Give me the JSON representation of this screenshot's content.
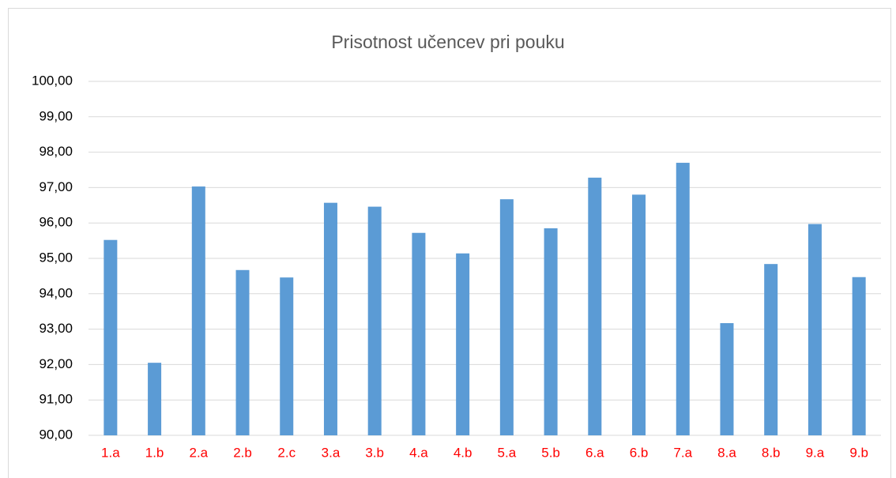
{
  "chart_data": {
    "type": "bar",
    "title": "Prisotnost učencev pri pouku",
    "categories": [
      "1.a",
      "1.b",
      "2.a",
      "2.b",
      "2.c",
      "3.a",
      "3.b",
      "4.a",
      "4.b",
      "5.a",
      "5.b",
      "6.a",
      "6.b",
      "7.a",
      "8.a",
      "8.b",
      "9.a",
      "9.b"
    ],
    "values": [
      95.52,
      92.05,
      97.03,
      94.67,
      94.46,
      96.57,
      96.46,
      95.72,
      95.14,
      96.67,
      95.85,
      97.28,
      96.8,
      97.7,
      93.17,
      94.84,
      95.97,
      94.47
    ],
    "color": "#5b9bd5",
    "category_color": "#ff0000",
    "ylim": [
      90,
      100
    ],
    "yticks": [
      {
        "value": 90,
        "label": "90,00"
      },
      {
        "value": 91,
        "label": "91,00"
      },
      {
        "value": 92,
        "label": "92,00"
      },
      {
        "value": 93,
        "label": "93,00"
      },
      {
        "value": 94,
        "label": "94,00"
      },
      {
        "value": 95,
        "label": "95,00"
      },
      {
        "value": 96,
        "label": "96,00"
      },
      {
        "value": 97,
        "label": "97,00"
      },
      {
        "value": 98,
        "label": "98,00"
      },
      {
        "value": 99,
        "label": "99,00"
      },
      {
        "value": 100,
        "label": "100,00"
      }
    ],
    "grid": true
  }
}
